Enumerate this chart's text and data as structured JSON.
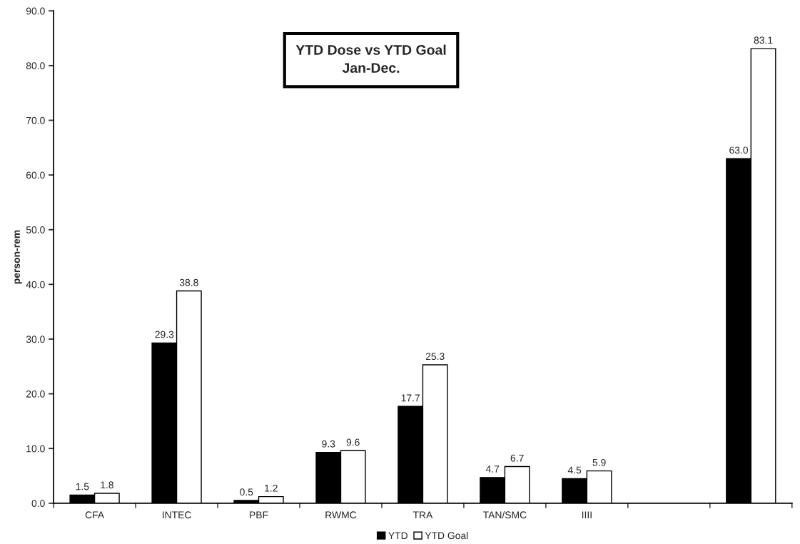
{
  "chart_data": {
    "type": "bar",
    "title": "YTD Dose vs YTD Goal\nJan-Dec.",
    "ylabel": "person-rem",
    "categories": [
      "CFA",
      "INTEC",
      "PBF",
      "RWMC",
      "TRA",
      "TAN/SMC",
      "IIII",
      null,
      null
    ],
    "series": [
      {
        "name": "YTD",
        "color": "#000000",
        "values": [
          1.5,
          29.3,
          0.5,
          9.3,
          17.7,
          4.7,
          4.5,
          null,
          63.0
        ],
        "value_labels": [
          "1.5",
          "29.3",
          "0.5",
          "9.3",
          "17.7",
          "4.7",
          "4.5",
          null,
          "63.0"
        ]
      },
      {
        "name": "YTD Goal",
        "color": "#ffffff",
        "values": [
          1.8,
          38.8,
          1.2,
          9.6,
          25.3,
          6.7,
          5.9,
          null,
          83.1
        ],
        "value_labels": [
          "1.8",
          "38.8",
          "1.2",
          "9.6",
          "25.3",
          "6.7",
          "5.9",
          null,
          "83.1"
        ]
      }
    ],
    "ylim": [
      0,
      90
    ],
    "yticks": [
      {
        "value": 0,
        "label": "0.0"
      },
      {
        "value": 10,
        "label": "10.0"
      },
      {
        "value": 20,
        "label": "20.0"
      },
      {
        "value": 30,
        "label": "30.0"
      },
      {
        "value": 40,
        "label": "40.0"
      },
      {
        "value": 50,
        "label": "50.0"
      },
      {
        "value": 60,
        "label": "60.0"
      },
      {
        "value": 70,
        "label": "70.0"
      },
      {
        "value": 80,
        "label": "80.0"
      },
      {
        "value": 90,
        "label": "90.0"
      }
    ],
    "grid": false,
    "legend": "bottom"
  }
}
